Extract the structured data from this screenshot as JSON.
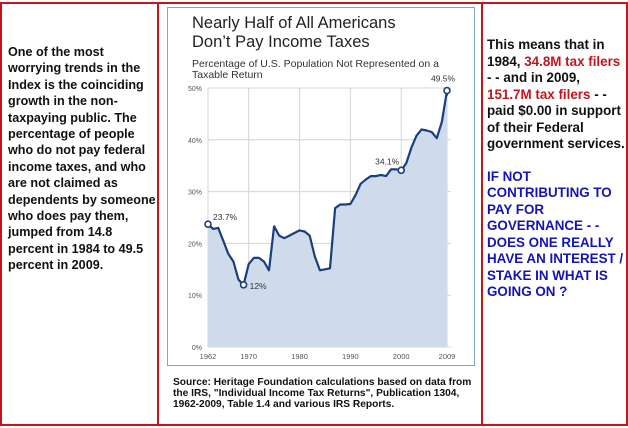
{
  "left_text": "One of the most worrying trends in the Index is the coinciding growth in the non-taxpaying public. The percentage of people who do not pay federal income taxes, and who are not claimed as dependents by someone who does pay them, jumped from 14.8 percent in 1984 to 49.5 percent in 2009.",
  "right_text": {
    "p1": "This means that in 1984, ",
    "r1": "34.8M tax filers",
    "p2": " - -  and in 2009, ",
    "r2": "151.7M  tax filers",
    "p3": " - -  paid $0.00  in support of their Federal government services.",
    "question": "IF NOT CONTRIBUTING TO PAY FOR GOVERNANCE - - DOES ONE REALLY HAVE AN INTEREST / STAKE  IN WHAT IS GOING ON ?"
  },
  "source": "Source: Heritage Foundation calculations based on data from the IRS, \"Individual Income Tax Returns\", Publication 1304, 1962-2009, Table 1.4 and various IRS Reports.",
  "colors": {
    "line": "#1a3f7f",
    "fill": "#cfdbea",
    "grid": "#d4d4d4",
    "border": "#c0161c",
    "red_text": "#c0161c",
    "blue_text": "#1414b4"
  },
  "chart_data": {
    "type": "area",
    "title_line1": "Nearly Half of All Americans",
    "title_line2": "Don’t Pay Income Taxes",
    "subtitle": "Percentage of U.S. Population Not Represented on a Taxable Return",
    "x": [
      1962,
      1963,
      1964,
      1965,
      1966,
      1967,
      1968,
      1969,
      1970,
      1971,
      1972,
      1973,
      1974,
      1975,
      1976,
      1977,
      1978,
      1979,
      1980,
      1981,
      1982,
      1983,
      1984,
      1985,
      1986,
      1987,
      1988,
      1989,
      1990,
      1991,
      1992,
      1993,
      1994,
      1995,
      1996,
      1997,
      1998,
      1999,
      2000,
      2001,
      2002,
      2003,
      2004,
      2005,
      2006,
      2007,
      2008,
      2009
    ],
    "values": [
      23.7,
      22.8,
      23,
      20.5,
      18,
      16.5,
      13,
      12,
      16,
      17.2,
      17.2,
      16.5,
      14.8,
      23.3,
      21.5,
      21,
      21.5,
      22,
      22.5,
      22.3,
      21.5,
      17.5,
      14.8,
      15,
      15.2,
      26.8,
      27.5,
      27.5,
      27.6,
      29.3,
      31.5,
      32.3,
      33,
      33,
      33.2,
      33,
      34.3,
      34.3,
      34.1,
      35.5,
      38.5,
      40.8,
      42,
      41.8,
      41.5,
      40.3,
      43.5,
      49.5
    ],
    "xlim": [
      1962,
      2009
    ],
    "ylim": [
      0,
      50
    ],
    "x_ticks": [
      "1962",
      "1970",
      "1980",
      "1990",
      "2000",
      "2009"
    ],
    "y_ticks": [
      "0%",
      "10%",
      "20%",
      "30%",
      "40%",
      "50%"
    ],
    "annotations": [
      {
        "year": 1962,
        "value": 23.7,
        "label": "23.7%"
      },
      {
        "year": 1969,
        "value": 12,
        "label": "12%"
      },
      {
        "year": 2000,
        "value": 34.1,
        "label": "34.1%"
      },
      {
        "year": 2009,
        "value": 49.5,
        "label": "49.5%"
      }
    ],
    "grid": true
  }
}
